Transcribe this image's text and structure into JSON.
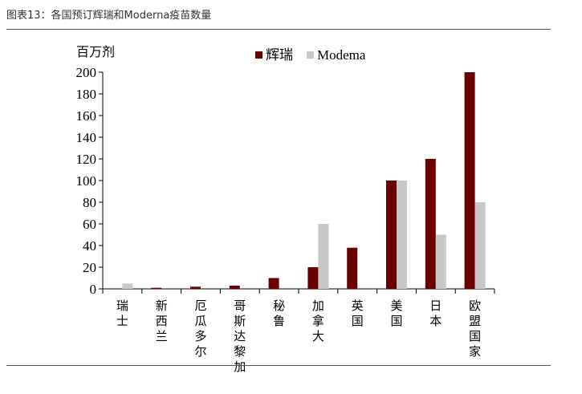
{
  "caption": "图表13：各国预订辉瑞和Moderna疫苗数量",
  "chart_data": {
    "type": "bar",
    "ylabel": "百万剂",
    "ylim": [
      0,
      200
    ],
    "yticks": [
      0,
      20,
      40,
      60,
      80,
      100,
      120,
      140,
      160,
      180,
      200
    ],
    "categories": [
      "瑞士",
      "新西兰",
      "厄瓜多尔",
      "哥斯达黎加",
      "秘鲁",
      "加拿大",
      "英国",
      "美国",
      "日本",
      "欧盟国家"
    ],
    "series": [
      {
        "name": "辉瑞",
        "color": "#6b0000",
        "values": [
          0,
          1,
          2,
          3,
          10,
          20,
          38,
          100,
          120,
          200
        ]
      },
      {
        "name": "Modema",
        "color": "#c8c8c8",
        "values": [
          5,
          0,
          0,
          0,
          0,
          60,
          0,
          100,
          50,
          80
        ]
      }
    ],
    "legend_position": "top",
    "grid": false
  }
}
